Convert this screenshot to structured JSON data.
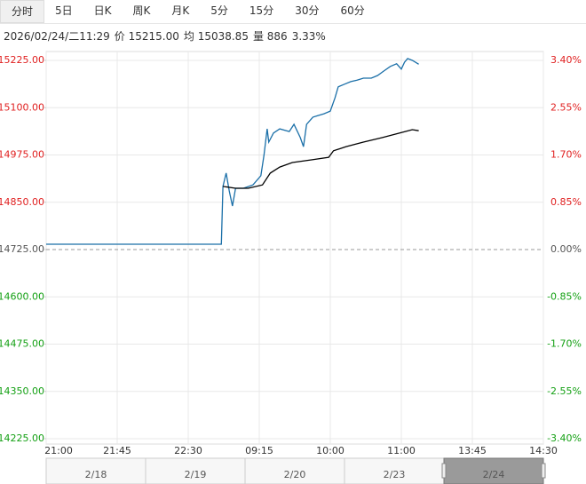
{
  "tabs": {
    "items": [
      "分时",
      "5日",
      "日K",
      "周K",
      "月K",
      "5分",
      "15分",
      "30分",
      "60分"
    ],
    "active": 0
  },
  "info": {
    "items": [
      "2026/02/24/二11:29",
      "价 15215.00",
      "均 15038.85",
      "量 886",
      "3.33%"
    ]
  },
  "chart_data": {
    "type": "line",
    "series": [
      {
        "name": "价",
        "color": "#1a6fa8",
        "x": [
          0,
          111,
          112,
          114,
          116,
          118,
          120,
          125,
          131,
          136,
          138,
          140,
          141,
          144,
          148,
          154,
          157,
          161,
          163,
          165,
          169,
          172,
          176,
          180,
          183,
          185,
          189,
          193,
          197,
          201,
          206,
          210,
          214,
          218,
          222,
          225,
          227,
          229,
          232,
          236
        ],
        "values": [
          14739,
          14739,
          14892,
          14927,
          14880,
          14840,
          14887,
          14887,
          14896,
          14920,
          14974,
          15044,
          15009,
          15033,
          15044,
          15037,
          15056,
          15021,
          14997,
          15056,
          15075,
          15079,
          15084,
          15091,
          15126,
          15155,
          15162,
          15169,
          15173,
          15178,
          15178,
          15185,
          15197,
          15209,
          15216,
          15202,
          15220,
          15230,
          15225,
          15215
        ]
      },
      {
        "name": "均",
        "color": "#000000",
        "x": [
          112,
          120,
          128,
          137,
          142,
          148,
          156,
          168,
          179,
          182,
          190,
          201,
          213,
          224,
          232,
          236
        ],
        "values": [
          14892,
          14887,
          14887,
          14896,
          14927,
          14943,
          14955,
          14962,
          14969,
          14986,
          14997,
          15009,
          15021,
          15033,
          15042,
          15039
        ]
      }
    ],
    "xlim": [
      0,
      315
    ],
    "xticks": [
      {
        "value": 0,
        "label": "21:00"
      },
      {
        "value": 45,
        "label": "21:45"
      },
      {
        "value": 90,
        "label": "22:30"
      },
      {
        "value": 135,
        "label": "09:15"
      },
      {
        "value": 180,
        "label": "10:00"
      },
      {
        "value": 225,
        "label": "11:00"
      },
      {
        "value": 270,
        "label": "13:45"
      },
      {
        "value": 315,
        "label": "14:30"
      }
    ],
    "ylim": [
      14225,
      15225
    ],
    "yticks": [
      {
        "value": 15225,
        "label": "15225.00"
      },
      {
        "value": 15100,
        "label": "15100.00"
      },
      {
        "value": 14975,
        "label": "14975.00"
      },
      {
        "value": 14850,
        "label": "14850.00"
      },
      {
        "value": 14725,
        "label": "14725.00"
      },
      {
        "value": 14600,
        "label": "14600.00"
      },
      {
        "value": 14475,
        "label": "14475.00"
      },
      {
        "value": 14350,
        "label": "14350.00"
      },
      {
        "value": 14225,
        "label": "14225.00"
      }
    ],
    "y2lim": [
      -3.4,
      3.4
    ],
    "y2ticks": [
      {
        "value": 3.4,
        "label": "3.40%"
      },
      {
        "value": 2.55,
        "label": "2.55%"
      },
      {
        "value": 1.7,
        "label": "1.70%"
      },
      {
        "value": 0.85,
        "label": "0.85%"
      },
      {
        "value": 0,
        "label": "0.00%"
      },
      {
        "value": -0.85,
        "label": "-0.85%"
      },
      {
        "value": -1.7,
        "label": "-1.70%"
      },
      {
        "value": -2.55,
        "label": "-2.55%"
      },
      {
        "value": -3.4,
        "label": "-3.40%"
      }
    ],
    "up_color": "#e02020",
    "down_color": "#14a014",
    "flat_color": "#555555",
    "grid": true,
    "navigator": {
      "dates": [
        "2/18",
        "2/19",
        "2/20",
        "2/23",
        "2/24"
      ],
      "active": 4
    }
  }
}
